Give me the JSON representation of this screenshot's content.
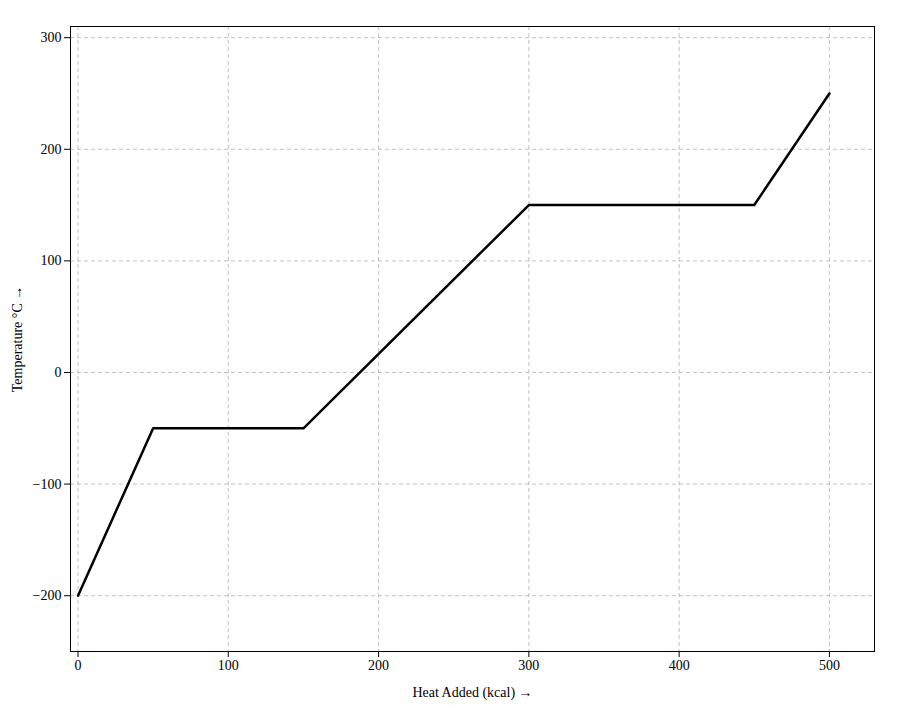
{
  "chart_data": {
    "type": "line",
    "x": [
      0,
      50,
      50,
      150,
      300,
      300,
      450,
      500
    ],
    "values": [
      -200,
      -50,
      -50,
      -50,
      150,
      150,
      150,
      250
    ],
    "color": "#000000",
    "xlabel": "Heat Added (kcal)",
    "ylabel": "Temperature °C",
    "xlim": [
      -5,
      530
    ],
    "ylim": [
      -250,
      310
    ],
    "xticks": [
      0,
      100,
      200,
      300,
      400,
      500
    ],
    "yticks": [
      -200,
      -100,
      0,
      100,
      200,
      300
    ],
    "grid": true
  }
}
